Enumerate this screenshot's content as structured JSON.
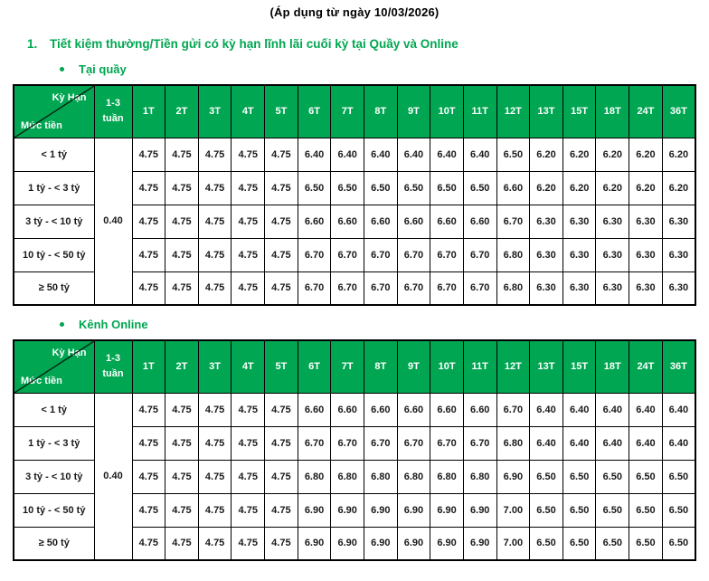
{
  "page": {
    "effective_date_line": "(Áp dụng từ ngày 10/03/2026)",
    "section_number": "1.",
    "section_title": "Tiết kiệm thường/Tiền gửi có kỳ hạn lĩnh lãi cuối kỳ tại Quầy và Online"
  },
  "colors": {
    "header_green": "#00A651",
    "header_text": "#FFFFFF",
    "border": "#000000"
  },
  "corner": {
    "top_right": "Kỳ Hạn",
    "bottom_left": "Mức tiền"
  },
  "term_headers": [
    "1T",
    "2T",
    "3T",
    "4T",
    "5T",
    "6T",
    "7T",
    "8T",
    "9T",
    "10T",
    "11T",
    "12T",
    "13T",
    "15T",
    "18T",
    "24T",
    "36T"
  ],
  "week_col_header": "1-3 tuần",
  "tables": [
    {
      "bullet_label": "Tại quầy",
      "week_col_value": "0.40",
      "rows": [
        {
          "label": "< 1 tỷ",
          "values": [
            "4.75",
            "4.75",
            "4.75",
            "4.75",
            "4.75",
            "6.40",
            "6.40",
            "6.40",
            "6.40",
            "6.40",
            "6.40",
            "6.50",
            "6.20",
            "6.20",
            "6.20",
            "6.20",
            "6.20"
          ]
        },
        {
          "label": "1 tỷ - < 3 tỷ",
          "values": [
            "4.75",
            "4.75",
            "4.75",
            "4.75",
            "4.75",
            "6.50",
            "6.50",
            "6.50",
            "6.50",
            "6.50",
            "6.50",
            "6.60",
            "6.20",
            "6.20",
            "6.20",
            "6.20",
            "6.20"
          ]
        },
        {
          "label": "3 tỷ - < 10 tỷ",
          "values": [
            "4.75",
            "4.75",
            "4.75",
            "4.75",
            "4.75",
            "6.60",
            "6.60",
            "6.60",
            "6.60",
            "6.60",
            "6.60",
            "6.70",
            "6.30",
            "6.30",
            "6.30",
            "6.30",
            "6.30"
          ]
        },
        {
          "label": "10 tỷ - < 50 tỷ",
          "values": [
            "4.75",
            "4.75",
            "4.75",
            "4.75",
            "4.75",
            "6.70",
            "6.70",
            "6.70",
            "6.70",
            "6.70",
            "6.70",
            "6.80",
            "6.30",
            "6.30",
            "6.30",
            "6.30",
            "6.30"
          ]
        },
        {
          "label": "≥ 50 tỷ",
          "values": [
            "4.75",
            "4.75",
            "4.75",
            "4.75",
            "4.75",
            "6.70",
            "6.70",
            "6.70",
            "6.70",
            "6.70",
            "6.70",
            "6.80",
            "6.30",
            "6.30",
            "6.30",
            "6.30",
            "6.30"
          ]
        }
      ]
    },
    {
      "bullet_label": "Kênh Online",
      "week_col_value": "0.40",
      "rows": [
        {
          "label": "< 1 tỷ",
          "values": [
            "4.75",
            "4.75",
            "4.75",
            "4.75",
            "4.75",
            "6.60",
            "6.60",
            "6.60",
            "6.60",
            "6.60",
            "6.60",
            "6.70",
            "6.40",
            "6.40",
            "6.40",
            "6.40",
            "6.40"
          ]
        },
        {
          "label": "1 tỷ - < 3 tỷ",
          "values": [
            "4.75",
            "4.75",
            "4.75",
            "4.75",
            "4.75",
            "6.70",
            "6.70",
            "6.70",
            "6.70",
            "6.70",
            "6.70",
            "6.80",
            "6.40",
            "6.40",
            "6.40",
            "6.40",
            "6.40"
          ]
        },
        {
          "label": "3 tỷ - < 10 tỷ",
          "values": [
            "4.75",
            "4.75",
            "4.75",
            "4.75",
            "4.75",
            "6.80",
            "6.80",
            "6.80",
            "6.80",
            "6.80",
            "6.80",
            "6.90",
            "6.50",
            "6.50",
            "6.50",
            "6.50",
            "6.50"
          ]
        },
        {
          "label": "10 tỷ - < 50 tỷ",
          "values": [
            "4.75",
            "4.75",
            "4.75",
            "4.75",
            "4.75",
            "6.90",
            "6.90",
            "6.90",
            "6.90",
            "6.90",
            "6.90",
            "7.00",
            "6.50",
            "6.50",
            "6.50",
            "6.50",
            "6.50"
          ]
        },
        {
          "label": "≥ 50 tỷ",
          "values": [
            "4.75",
            "4.75",
            "4.75",
            "4.75",
            "4.75",
            "6.90",
            "6.90",
            "6.90",
            "6.90",
            "6.90",
            "6.90",
            "7.00",
            "6.50",
            "6.50",
            "6.50",
            "6.50",
            "6.50"
          ]
        }
      ]
    }
  ]
}
